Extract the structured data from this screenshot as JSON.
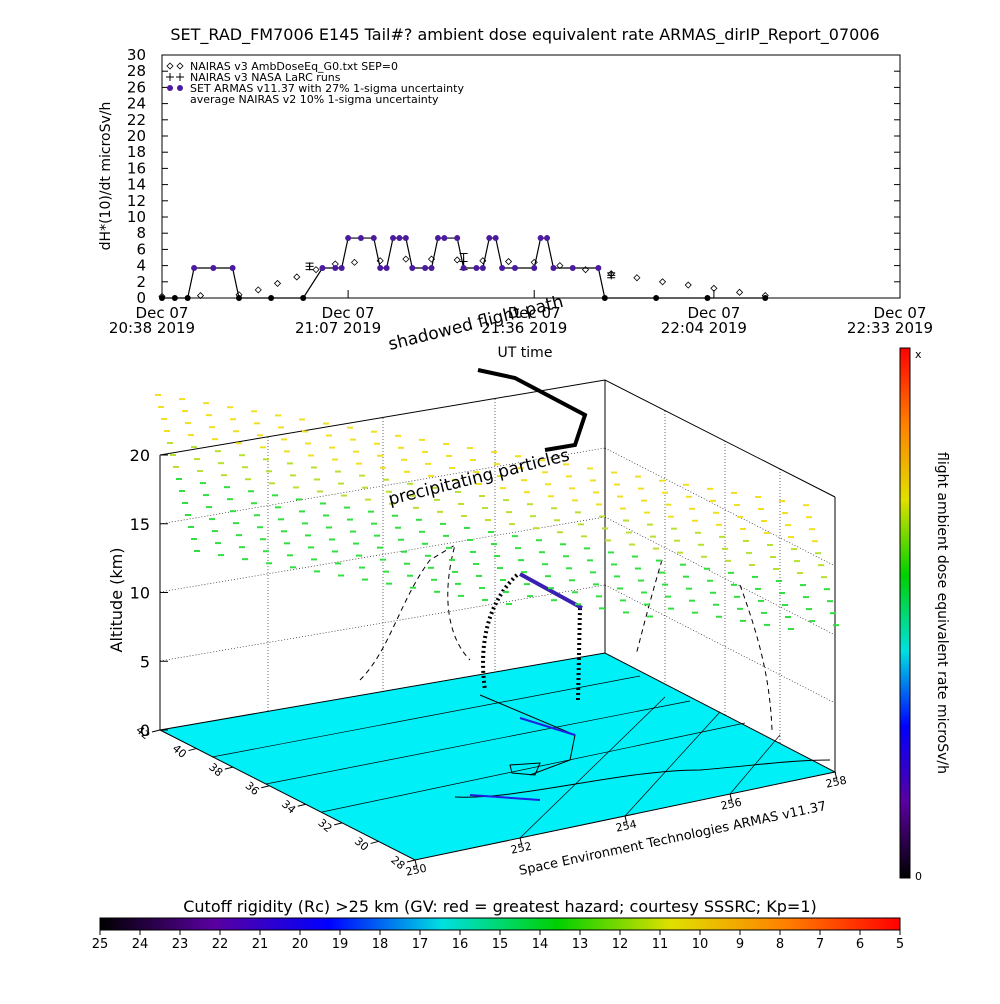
{
  "chart_data": [
    {
      "type": "line",
      "title": "SET_RAD_FM7006  E145 Tail#? ambient dose equivalent rate ARMAS_dirIP_Report_07006",
      "y_label": "dH*(10)/dt microSv/h",
      "x_label": "UT time",
      "xlim": [
        "2019-12-07T20:38",
        "2019-12-07T22:33"
      ],
      "xticks": [
        {
          "value": "2019-12-07T20:38",
          "label": [
            "Dec 07",
            "20:38 2019"
          ]
        },
        {
          "value": "2019-12-07T21:07",
          "label": [
            "Dec 07",
            "21:07 2019"
          ]
        },
        {
          "value": "2019-12-07T21:36",
          "label": [
            "Dec 07",
            "21:36 2019"
          ]
        },
        {
          "value": "2019-12-07T22:04",
          "label": [
            "Dec 07",
            "22:04 2019"
          ]
        },
        {
          "value": "2019-12-07T22:33",
          "label": [
            "Dec 07",
            "22:33 2019"
          ]
        }
      ],
      "ylim": [
        0,
        30
      ],
      "yticks": [
        0,
        2,
        4,
        6,
        8,
        10,
        12,
        14,
        16,
        18,
        20,
        22,
        24,
        26,
        28,
        30
      ],
      "series": [
        {
          "name": "NAIRAS v3 AmbDoseEq_G0.txt SEP=0",
          "marker": "diamond",
          "color": "#000000",
          "x": [
            "2019-12-07T20:38",
            "2019-12-07T20:44",
            "2019-12-07T20:50",
            "2019-12-07T20:53",
            "2019-12-07T20:56",
            "2019-12-07T20:59",
            "2019-12-07T21:02",
            "2019-12-07T21:05",
            "2019-12-07T21:08",
            "2019-12-07T21:12",
            "2019-12-07T21:16",
            "2019-12-07T21:20",
            "2019-12-07T21:24",
            "2019-12-07T21:28",
            "2019-12-07T21:32",
            "2019-12-07T21:36",
            "2019-12-07T21:40",
            "2019-12-07T21:44",
            "2019-12-07T21:48",
            "2019-12-07T21:52",
            "2019-12-07T21:56",
            "2019-12-07T22:00",
            "2019-12-07T22:04",
            "2019-12-07T22:08",
            "2019-12-07T22:12"
          ],
          "values": [
            0.2,
            0.3,
            0.4,
            1.0,
            1.8,
            2.6,
            3.5,
            4.2,
            4.4,
            4.6,
            4.8,
            4.8,
            4.7,
            4.6,
            4.5,
            4.4,
            4.0,
            3.5,
            3.0,
            2.5,
            2.0,
            1.6,
            1.2,
            0.7,
            0.3
          ]
        },
        {
          "name": "NAIRAS v3 NASA LaRC runs",
          "marker": "plus",
          "color": "#000000",
          "x": [
            "2019-12-07T21:01",
            "2019-12-07T21:25",
            "2019-12-07T21:48"
          ],
          "values": [
            3.9,
            4.5,
            2.8
          ],
          "errors": [
            0.4,
            1.0,
            0.3
          ]
        },
        {
          "name": "SET ARMAS v11.37 with 27% 1-sigma uncertainty",
          "marker": "dot",
          "color": "#4b1a9e",
          "x": [
            "2019-12-07T20:38",
            "2019-12-07T20:40",
            "2019-12-07T20:42",
            "2019-12-07T20:43",
            "2019-12-07T20:46",
            "2019-12-07T20:49",
            "2019-12-07T20:50",
            "2019-12-07T20:55",
            "2019-12-07T21:00",
            "2019-12-07T21:03",
            "2019-12-07T21:05",
            "2019-12-07T21:06",
            "2019-12-07T21:07",
            "2019-12-07T21:09",
            "2019-12-07T21:11",
            "2019-12-07T21:12",
            "2019-12-07T21:13",
            "2019-12-07T21:14",
            "2019-12-07T21:15",
            "2019-12-07T21:16",
            "2019-12-07T21:17",
            "2019-12-07T21:19",
            "2019-12-07T21:20",
            "2019-12-07T21:21",
            "2019-12-07T21:22",
            "2019-12-07T21:24",
            "2019-12-07T21:25",
            "2019-12-07T21:27",
            "2019-12-07T21:28",
            "2019-12-07T21:29",
            "2019-12-07T21:30",
            "2019-12-07T21:31",
            "2019-12-07T21:33",
            "2019-12-07T21:36",
            "2019-12-07T21:37",
            "2019-12-07T21:38",
            "2019-12-07T21:39",
            "2019-12-07T21:42",
            "2019-12-07T21:46",
            "2019-12-07T21:47",
            "2019-12-07T21:55",
            "2019-12-07T22:03",
            "2019-12-07T22:12"
          ],
          "values": [
            0,
            0,
            0,
            3.7,
            3.7,
            3.7,
            0,
            0,
            0,
            3.7,
            3.7,
            3.7,
            7.4,
            7.4,
            7.4,
            3.7,
            3.7,
            7.4,
            7.4,
            7.4,
            3.7,
            3.7,
            3.7,
            7.4,
            7.4,
            7.4,
            3.7,
            3.7,
            3.7,
            7.4,
            7.4,
            3.7,
            3.7,
            3.7,
            7.4,
            7.4,
            3.7,
            3.7,
            3.7,
            0,
            0,
            0,
            0
          ]
        },
        {
          "name": "average NAIRAS v2 10% 1-sigma uncertainty",
          "marker": "none",
          "color": "#000000",
          "x": [],
          "values": []
        }
      ]
    },
    {
      "type": "3d-track",
      "annotations": [
        "shadowed flight path",
        "precipitating particles"
      ],
      "z_label": "Altitude (km)",
      "zlim": [
        0,
        20
      ],
      "zticks": [
        0,
        5,
        10,
        15,
        20
      ],
      "ylim": [
        28,
        42
      ],
      "yticks": [
        28,
        30,
        32,
        34,
        36,
        38,
        40,
        42
      ],
      "xlim": [
        250,
        258
      ],
      "xticks": [
        250,
        252,
        254,
        256,
        258
      ],
      "credit": "Space Environment Technologies ARMAS v11.37",
      "colorbar_label": "flight ambient dose equivalent rate microSv/h",
      "colorbar_max_label": "x",
      "colorbar_min": 0,
      "colorbar_colors": [
        "#000000",
        "#5a00a0",
        "#0000ff",
        "#00e0e0",
        "#00d000",
        "#e0e000",
        "#ff8000",
        "#ff0000"
      ]
    },
    {
      "type": "colorbar",
      "title": "Cutoff rigidity (Rc) >25 km (GV: red = greatest hazard; courtesy SSSRC; Kp=1)",
      "xlim": [
        25,
        5
      ],
      "ticks": [
        25,
        24,
        23,
        22,
        21,
        20,
        19,
        18,
        17,
        16,
        15,
        14,
        13,
        12,
        11,
        10,
        9,
        8,
        7,
        6,
        5
      ],
      "colors": [
        "#000000",
        "#5a00a0",
        "#0000ff",
        "#00e0e0",
        "#00d000",
        "#e0e000",
        "#ff8000",
        "#ff0000"
      ]
    }
  ]
}
